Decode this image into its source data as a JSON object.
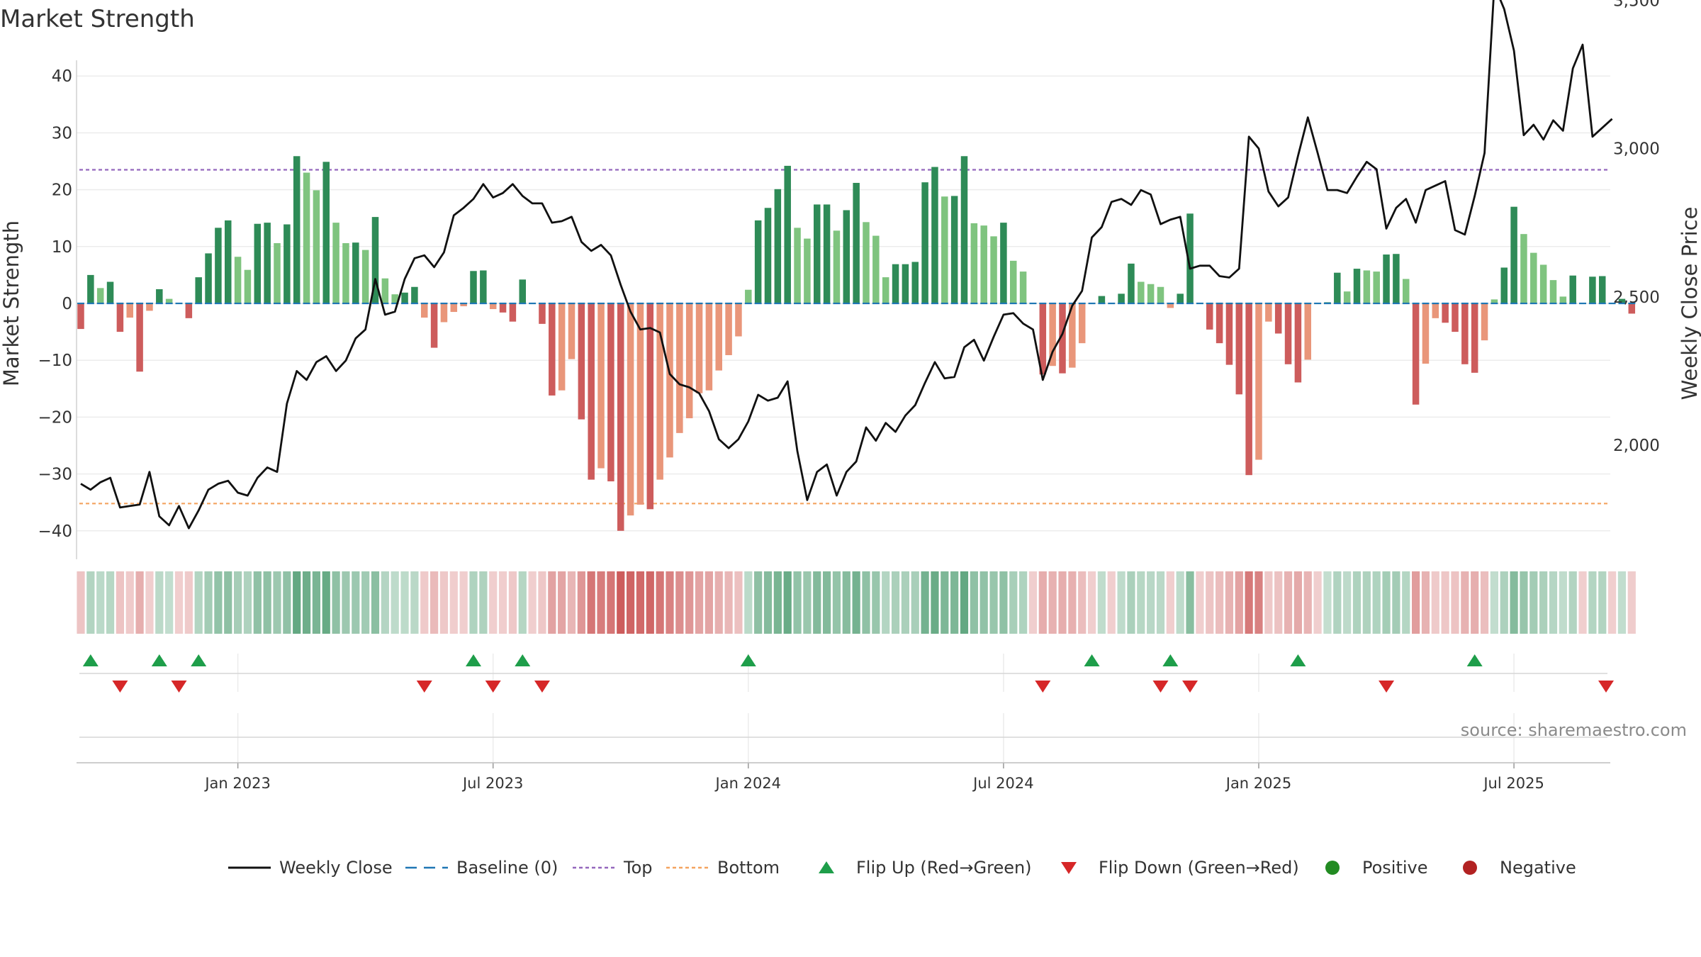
{
  "title": "Market Strength",
  "source": "source: sharemaestro.com",
  "colors": {
    "strong_green": "#2e8b57",
    "light_green": "#7fc47f",
    "strong_red": "#cd5c5c",
    "light_red": "#e9967a",
    "baseline": "#1f77b4",
    "top": "#9467bd",
    "bottom": "#f4a460",
    "close": "#111111",
    "flip_up": "#1e9e4a",
    "flip_down": "#d62728",
    "positive": "#228b22",
    "negative": "#b22222"
  },
  "chart_data": {
    "type": "bar",
    "title": "Market Strength",
    "ylabel_left": "Market Strength",
    "ylabel_right": "Weekly Close Price",
    "ylim_left": [
      -43,
      42
    ],
    "ylim_right": [
      1575,
      3640
    ],
    "yticks_left": [
      "40",
      "30",
      "20",
      "10",
      "0",
      "−10",
      "−20",
      "−30",
      "−40"
    ],
    "ytick_values_left": [
      40,
      30,
      20,
      10,
      0,
      -10,
      -20,
      -30,
      -40
    ],
    "yticks_right": [
      "3,500",
      "3,000",
      "2,500",
      "2,000"
    ],
    "ytick_values_right": [
      3500,
      3000,
      2500,
      2000
    ],
    "xtick_labels": [
      "Jan 2023",
      "Jul 2023",
      "Jan 2024",
      "Jul 2024",
      "Jan 2025",
      "Jul 2025"
    ],
    "xtick_weeks": [
      16,
      42,
      68,
      94,
      120,
      146
    ],
    "top_line": 23.5,
    "bottom_line": -35.2,
    "baseline": 0,
    "grid": true,
    "legend_position": "bottom",
    "strength": [
      -4.5,
      5,
      2.7,
      3.8,
      -5,
      -2.5,
      -12,
      -1.3,
      2.5,
      0.8,
      0,
      -2.6,
      4.6,
      8.8,
      13.3,
      14.6,
      8.2,
      5.9,
      14,
      14.2,
      10.6,
      13.9,
      25.9,
      23,
      19.9,
      24.9,
      14.2,
      10.6,
      10.7,
      9.4,
      15.2,
      4.4,
      1.6,
      1.9,
      2.9,
      -2.5,
      -7.8,
      -3.3,
      -1.5,
      -0.5,
      5.7,
      5.8,
      -1,
      -1.6,
      -3.2,
      4.2,
      0,
      -3.6,
      -16.2,
      -15.3,
      -9.8,
      -20.4,
      -31,
      -29,
      -31.3,
      -40,
      -37.3,
      -35.4,
      -36.2,
      -31,
      -27.1,
      -22.8,
      -20.2,
      -15.8,
      -15.3,
      -11.8,
      -9.1,
      -5.8,
      2.4,
      14.6,
      16.8,
      20.1,
      24.2,
      13.3,
      11.4,
      17.4,
      17.4,
      12.8,
      16.4,
      21.2,
      14.3,
      11.9,
      4.6,
      6.9,
      6.9,
      7.3,
      21.3,
      24,
      18.8,
      18.9,
      25.9,
      14.1,
      13.7,
      11.8,
      14.2,
      7.5,
      5.6,
      0,
      -12.5,
      -11,
      -12.3,
      -11.3,
      -7,
      0,
      1.3,
      0,
      1.7,
      7,
      3.8,
      3.4,
      2.9,
      -0.8,
      1.7,
      15.8,
      0,
      -4.6,
      -7,
      -10.8,
      -16,
      -30.2,
      -27.5,
      -3.2,
      -5.3,
      -10.7,
      -13.9,
      -9.9,
      0,
      0.2,
      5.4,
      2.1,
      6.1,
      5.8,
      5.6,
      8.6,
      8.7,
      4.3,
      -17.8,
      -10.6,
      -2.6,
      -3.4,
      -5,
      -10.7,
      -12.2,
      -6.5,
      0.7,
      6.3,
      17,
      12.2,
      8.9,
      6.8,
      4.1,
      1.2,
      4.9,
      0,
      4.7,
      4.8,
      0,
      0.8,
      -1.8
    ],
    "weekly_close": [
      1870,
      1850,
      1875,
      1890,
      1790,
      1795,
      1800,
      1910,
      1760,
      1730,
      1795,
      1720,
      1780,
      1850,
      1870,
      1880,
      1840,
      1830,
      1890,
      1925,
      1910,
      2140,
      2250,
      2220,
      2280,
      2300,
      2250,
      2285,
      2360,
      2390,
      2560,
      2440,
      2450,
      2560,
      2630,
      2640,
      2600,
      2650,
      2775,
      2800,
      2830,
      2880,
      2835,
      2850,
      2880,
      2840,
      2815,
      2815,
      2750,
      2755,
      2770,
      2685,
      2655,
      2675,
      2640,
      2540,
      2450,
      2390,
      2395,
      2380,
      2240,
      2205,
      2195,
      2175,
      2115,
      2020,
      1990,
      2020,
      2080,
      2170,
      2150,
      2160,
      2215,
      1980,
      1815,
      1910,
      1935,
      1830,
      1910,
      1945,
      2060,
      2015,
      2075,
      2045,
      2100,
      2135,
      2210,
      2280,
      2225,
      2230,
      2330,
      2355,
      2285,
      2365,
      2440,
      2445,
      2410,
      2390,
      2220,
      2315,
      2375,
      2470,
      2520,
      2700,
      2735,
      2820,
      2830,
      2810,
      2860,
      2845,
      2745,
      2760,
      2770,
      2595,
      2605,
      2605,
      2570,
      2565,
      2595,
      3040,
      3000,
      2855,
      2805,
      2835,
      2975,
      3105,
      2985,
      2860,
      2860,
      2850,
      2905,
      2955,
      2930,
      2730,
      2800,
      2830,
      2750,
      2860,
      2875,
      2890,
      2725,
      2710,
      2840,
      2985,
      3550,
      3470,
      3330,
      3045,
      3080,
      3030,
      3095,
      3060,
      3270,
      3350,
      3040,
      3070,
      3100
    ],
    "band_strength": [
      -4.5,
      5,
      2.7,
      3.8,
      -5,
      -2.5,
      -12,
      -1.3,
      2.5,
      0.8,
      0,
      -2.6,
      4.6,
      8.8,
      13.3,
      14.6,
      8.2,
      5.9,
      14,
      14.2,
      10.6,
      13.9,
      25.9,
      23,
      19.9,
      24.9,
      14.2,
      10.6,
      10.7,
      9.4,
      15.2,
      4.4,
      1.6,
      1.9,
      2.9,
      -2.5,
      -7.8,
      -3.3,
      -1.5,
      -0.5,
      5.7,
      5.8,
      -1,
      -1.6,
      -3.2,
      4.2,
      0,
      -3.6,
      -16.2,
      -15.3,
      -9.8,
      -20.4,
      -31,
      -29,
      -31.3,
      -40,
      -37.3,
      -35.4,
      -36.2,
      -31,
      -27.1,
      -22.8,
      -20.2,
      -15.8,
      -15.3,
      -11.8,
      -9.1,
      -5.8,
      2.4,
      14.6,
      16.8,
      20.1,
      24.2,
      13.3,
      11.4,
      17.4,
      17.4,
      12.8,
      16.4,
      21.2,
      14.3,
      11.9,
      4.6,
      6.9,
      6.9,
      7.3,
      21.3,
      24,
      18.8,
      18.9,
      25.9,
      14.1,
      13.7,
      11.8,
      14.2,
      7.5,
      5.6,
      0,
      -12.5,
      -11,
      -12.3,
      -11.3,
      -7,
      0,
      1.3,
      0,
      1.7,
      7,
      3.8,
      3.4,
      2.9,
      -0.8,
      1.7,
      15.8,
      0,
      -4.6,
      -7,
      -10.8,
      -16,
      -30.2,
      -27.5,
      -3.2,
      -5.3,
      -10.7,
      -13.9,
      -9.9,
      0,
      0.2,
      5.4,
      2.1,
      6.1,
      5.8,
      5.6,
      8.6,
      8.7,
      4.3,
      -17.8,
      -10.6,
      -2.6,
      -3.4,
      -5,
      -10.7,
      -12.2,
      -6.5,
      0.7,
      6.3,
      17,
      12.2,
      8.9,
      6.8,
      4.1,
      1.2,
      4.9,
      0,
      4.7,
      4.8,
      0,
      0.8,
      -1.8
    ],
    "flip_up_weeks": [
      1,
      8,
      12,
      40,
      45,
      68,
      103,
      111,
      124,
      142
    ],
    "flip_down_weeks": [
      4,
      10,
      35,
      42,
      47,
      98,
      110,
      113,
      133,
      156
    ],
    "legend": [
      {
        "label": "Weekly Close",
        "marker": "solid-line"
      },
      {
        "label": "Baseline (0)",
        "marker": "dashed-line"
      },
      {
        "label": "Top",
        "marker": "dotted-line"
      },
      {
        "label": "Bottom",
        "marker": "dotted-line"
      },
      {
        "label": "Flip Up (Red→Green)",
        "marker": "triangle-up"
      },
      {
        "label": "Flip Down (Green→Red)",
        "marker": "triangle-down"
      },
      {
        "label": "Positive",
        "marker": "circle"
      },
      {
        "label": "Negative",
        "marker": "circle"
      }
    ]
  }
}
